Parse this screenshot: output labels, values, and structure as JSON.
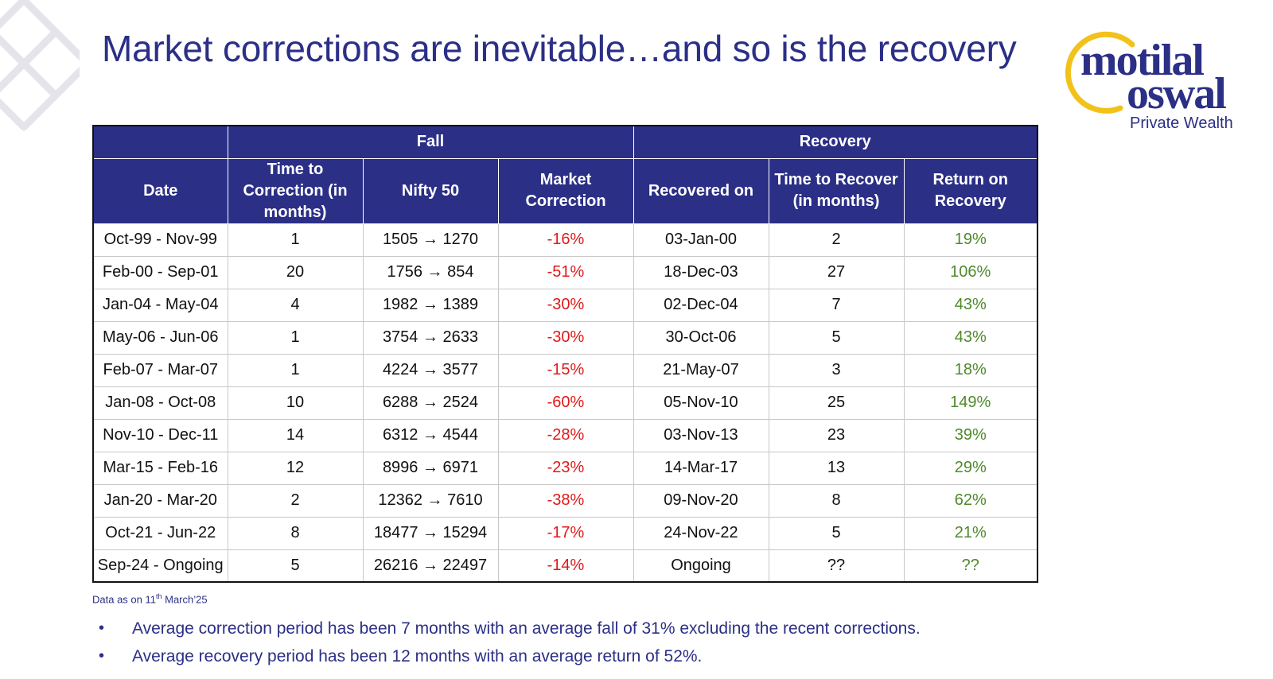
{
  "title": "Market corrections are inevitable…and so is the recovery",
  "logo": {
    "line1": "motilal",
    "line2": "oswal",
    "line3": "Private Wealth"
  },
  "colors": {
    "brand": "#2b2f86",
    "negative": "#e11919",
    "positive": "#4e8a2a",
    "logo_ring": "#f2c21b"
  },
  "table": {
    "groups": {
      "fall": "Fall",
      "recovery": "Recovery"
    },
    "columns": {
      "date": "Date",
      "time_to_correction": "Time to Correction (in months)",
      "nifty": "Nifty 50",
      "market_correction": "Market Correction",
      "recovered_on": "Recovered on",
      "time_to_recover": "Time to Recover (in months)",
      "return_on_recovery": "Return on Recovery"
    },
    "rows": [
      {
        "date": "Oct-99 - Nov-99",
        "ttc": "1",
        "nifty": "1505 → 1270",
        "corr": "-16%",
        "rec_on": "03-Jan-00",
        "ttr": "2",
        "ret": "19%"
      },
      {
        "date": "Feb-00 - Sep-01",
        "ttc": "20",
        "nifty": "1756 → 854",
        "corr": "-51%",
        "rec_on": "18-Dec-03",
        "ttr": "27",
        "ret": "106%"
      },
      {
        "date": "Jan-04 - May-04",
        "ttc": "4",
        "nifty": "1982 → 1389",
        "corr": "-30%",
        "rec_on": "02-Dec-04",
        "ttr": "7",
        "ret": "43%"
      },
      {
        "date": "May-06 - Jun-06",
        "ttc": "1",
        "nifty": "3754 → 2633",
        "corr": "-30%",
        "rec_on": "30-Oct-06",
        "ttr": "5",
        "ret": "43%"
      },
      {
        "date": "Feb-07 - Mar-07",
        "ttc": "1",
        "nifty": "4224 → 3577",
        "corr": "-15%",
        "rec_on": "21-May-07",
        "ttr": "3",
        "ret": "18%"
      },
      {
        "date": "Jan-08 - Oct-08",
        "ttc": "10",
        "nifty": "6288 → 2524",
        "corr": "-60%",
        "rec_on": "05-Nov-10",
        "ttr": "25",
        "ret": "149%"
      },
      {
        "date": "Nov-10 - Dec-11",
        "ttc": "14",
        "nifty": "6312 → 4544",
        "corr": "-28%",
        "rec_on": "03-Nov-13",
        "ttr": "23",
        "ret": "39%"
      },
      {
        "date": "Mar-15 - Feb-16",
        "ttc": "12",
        "nifty": "8996 → 6971",
        "corr": "-23%",
        "rec_on": "14-Mar-17",
        "ttr": "13",
        "ret": "29%"
      },
      {
        "date": "Jan-20 - Mar-20",
        "ttc": "2",
        "nifty": "12362 → 7610",
        "corr": "-38%",
        "rec_on": "09-Nov-20",
        "ttr": "8",
        "ret": "62%"
      },
      {
        "date": "Oct-21 - Jun-22",
        "ttc": "8",
        "nifty": "18477 → 15294",
        "corr": "-17%",
        "rec_on": "24-Nov-22",
        "ttr": "5",
        "ret": "21%"
      },
      {
        "date": "Sep-24 - Ongoing",
        "ttc": "5",
        "nifty": "26216 → 22497",
        "corr": "-14%",
        "rec_on": "Ongoing",
        "ttr": "??",
        "ret": "??"
      }
    ]
  },
  "note": {
    "prefix": "Data as on 11",
    "sup": "th",
    "suffix": " March’25"
  },
  "bullets": [
    "Average correction period has been 7 months with an average fall of 31% excluding the recent corrections.",
    "Average recovery period has been 12 months with an average return of 52%."
  ],
  "bullet_symbol": "•"
}
